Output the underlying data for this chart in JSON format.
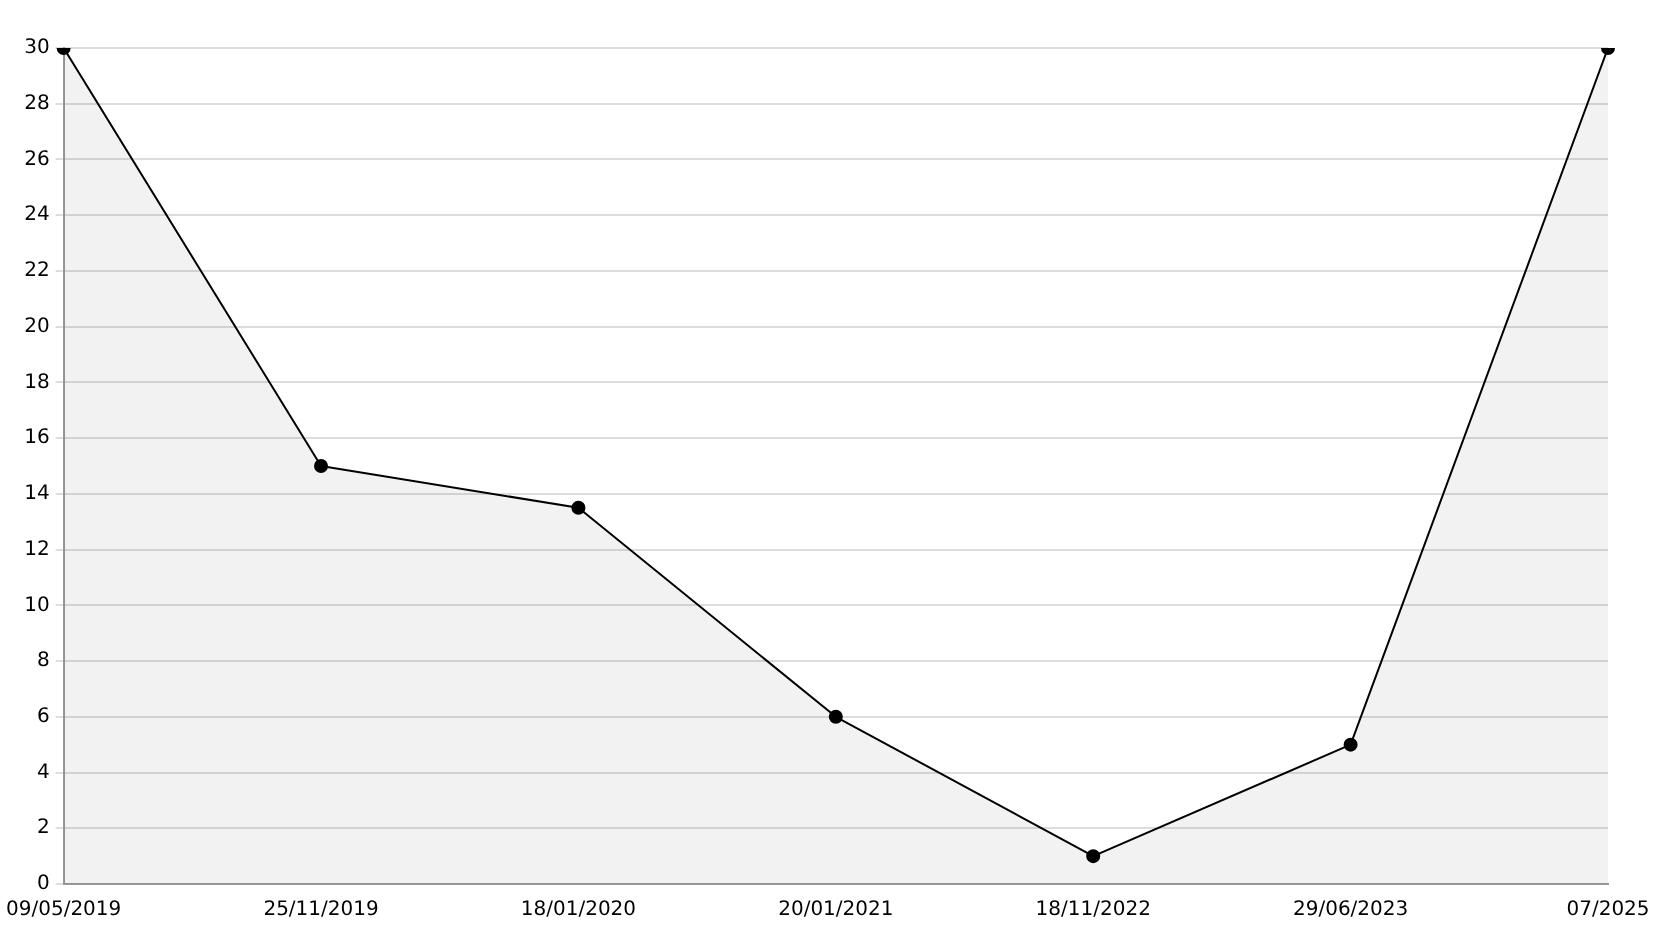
{
  "chart_data": {
    "type": "area",
    "categories": [
      "09/05/2019",
      "25/11/2019",
      "18/01/2020",
      "20/01/2021",
      "18/11/2022",
      "29/06/2023",
      "07/2025"
    ],
    "series": [
      {
        "color": "#000000",
        "values": [
          30,
          15,
          13.5,
          6,
          1,
          5,
          30
        ]
      }
    ],
    "ylim": [
      0,
      30
    ],
    "yticks": [
      0,
      2,
      4,
      6,
      8,
      10,
      12,
      14,
      16,
      18,
      20,
      22,
      24,
      26,
      28,
      30
    ],
    "grid": "y",
    "legend": false,
    "marker": "circle",
    "line_style": "solid"
  }
}
